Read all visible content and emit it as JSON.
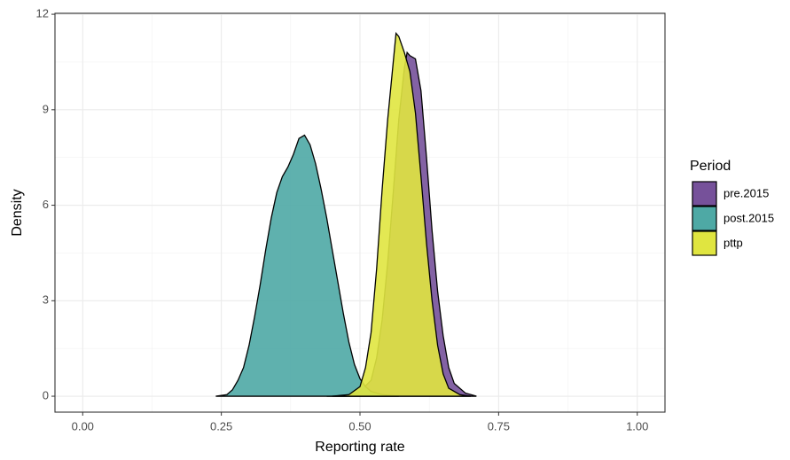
{
  "chart_data": {
    "type": "density",
    "x_label": "Reporting rate",
    "y_label": "Density",
    "legend_title": "Period",
    "legend_position": "right",
    "grid": true,
    "minor_grid": true,
    "xlim": [
      -0.05,
      1.05
    ],
    "ylim": [
      -0.5,
      12.03
    ],
    "xticks": [
      {
        "value": 0,
        "label": "0.00"
      },
      {
        "value": 0.25,
        "label": "0.25"
      },
      {
        "value": 0.5,
        "label": "0.50"
      },
      {
        "value": 0.75,
        "label": "0.75"
      },
      {
        "value": 1,
        "label": "1.00"
      }
    ],
    "yticks": [
      0,
      3,
      6,
      9,
      12
    ],
    "series": [
      {
        "name": "pre.2015",
        "color": "#76519a",
        "x": [
          0.44,
          0.48,
          0.5,
          0.52,
          0.53,
          0.54,
          0.55,
          0.56,
          0.57,
          0.58,
          0.585,
          0.59,
          0.6,
          0.61,
          0.62,
          0.63,
          0.64,
          0.65,
          0.66,
          0.67,
          0.69,
          0.71
        ],
        "values": [
          0,
          0.05,
          0.15,
          0.5,
          1.2,
          2.4,
          4.2,
          6.4,
          8.7,
          10.3,
          10.8,
          10.7,
          10.6,
          9.6,
          7.5,
          5.2,
          3.3,
          1.9,
          0.9,
          0.4,
          0.1,
          0
        ]
      },
      {
        "name": "post.2015",
        "color": "#4ea9a5",
        "x": [
          0.24,
          0.26,
          0.27,
          0.28,
          0.29,
          0.3,
          0.31,
          0.32,
          0.33,
          0.34,
          0.35,
          0.36,
          0.37,
          0.38,
          0.39,
          0.4,
          0.41,
          0.42,
          0.43,
          0.44,
          0.45,
          0.46,
          0.47,
          0.48,
          0.49,
          0.5,
          0.51,
          0.52,
          0.54,
          0.57
        ],
        "values": [
          0,
          0.05,
          0.2,
          0.5,
          0.9,
          1.6,
          2.5,
          3.5,
          4.6,
          5.6,
          6.4,
          6.9,
          7.2,
          7.6,
          8.1,
          8.2,
          7.9,
          7.3,
          6.5,
          5.6,
          4.6,
          3.6,
          2.6,
          1.7,
          1.0,
          0.55,
          0.3,
          0.15,
          0.05,
          0
        ]
      },
      {
        "name": "pttp",
        "color": "#e0e540",
        "x": [
          0.45,
          0.48,
          0.5,
          0.51,
          0.52,
          0.53,
          0.54,
          0.55,
          0.56,
          0.565,
          0.57,
          0.58,
          0.59,
          0.6,
          0.61,
          0.62,
          0.63,
          0.64,
          0.65,
          0.66,
          0.68,
          0.7
        ],
        "values": [
          0,
          0.05,
          0.3,
          0.9,
          2.0,
          4.0,
          6.5,
          8.7,
          10.5,
          11.4,
          11.3,
          10.8,
          10.2,
          8.9,
          6.9,
          4.8,
          3.0,
          1.6,
          0.7,
          0.25,
          0.05,
          0
        ]
      }
    ]
  }
}
